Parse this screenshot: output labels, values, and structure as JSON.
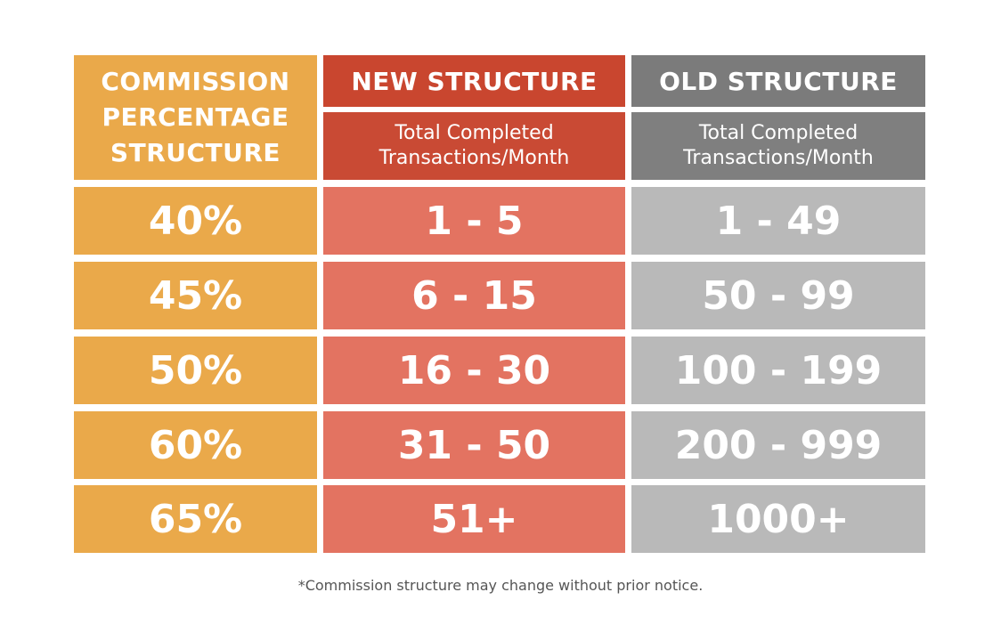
{
  "header": {
    "left_lines": [
      "COMMISSION",
      "PERCENTAGE",
      "STRUCTURE"
    ],
    "new_title": "NEW STRUCTURE",
    "old_title": "OLD STRUCTURE",
    "new_sub_lines": [
      "Total Completed",
      "Transactions/Month"
    ],
    "old_sub_lines": [
      "Total Completed",
      "Transactions/Month"
    ]
  },
  "rows": [
    {
      "percent": "40%",
      "new": "1 - 5",
      "old": "1 - 49"
    },
    {
      "percent": "45%",
      "new": "6 - 15",
      "old": "50 - 99"
    },
    {
      "percent": "50%",
      "new": "16 - 30",
      "old": "100 - 199"
    },
    {
      "percent": "60%",
      "new": "31 - 50",
      "old": "200 - 999"
    },
    {
      "percent": "65%",
      "new": "51+",
      "old": "1000+"
    }
  ],
  "footnote": "*Commission structure may change without prior notice.",
  "colors": {
    "orange": "#eaa94a",
    "new_header": "#c9462f",
    "new_cells": "#e37361",
    "old_header": "#7b7b7b",
    "old_cells": "#b9b9b9"
  }
}
